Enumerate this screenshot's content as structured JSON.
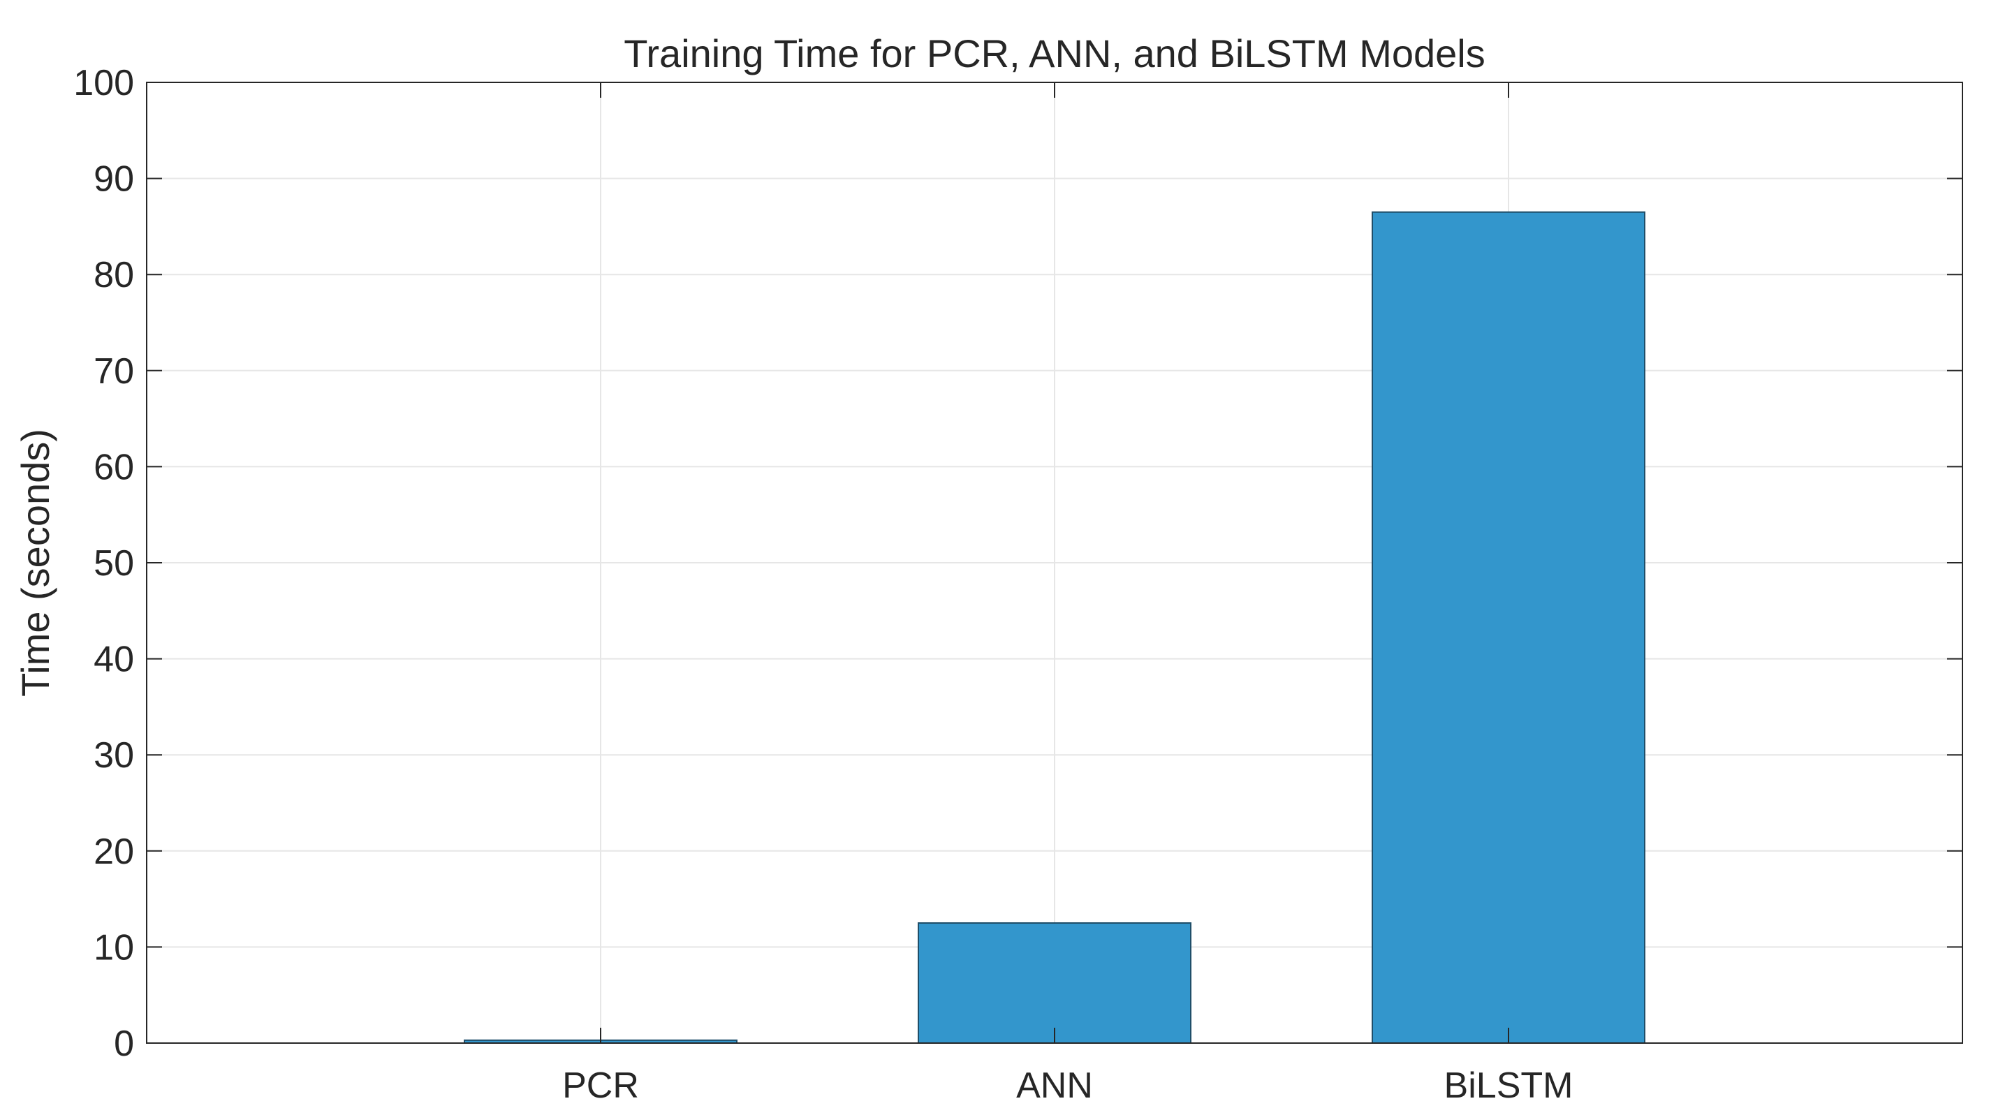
{
  "chart_data": {
    "type": "bar",
    "title": "Training Time for PCR, ANN, and BiLSTM Models",
    "xlabel": "",
    "ylabel": "Time (seconds)",
    "categories": [
      "PCR",
      "ANN",
      "BiLSTM"
    ],
    "values": [
      0.3,
      12.5,
      86.5
    ],
    "ylim": [
      0,
      100
    ],
    "xlim": [
      0,
      4
    ],
    "yticks": [
      0,
      10,
      20,
      30,
      40,
      50,
      60,
      70,
      80,
      90,
      100
    ],
    "grid": true,
    "legend": "none",
    "bar_color": "#3396CC",
    "bar_edge_color": "#1F4E69",
    "axis_color": "#262626",
    "grid_color": "#E6E6E6"
  }
}
